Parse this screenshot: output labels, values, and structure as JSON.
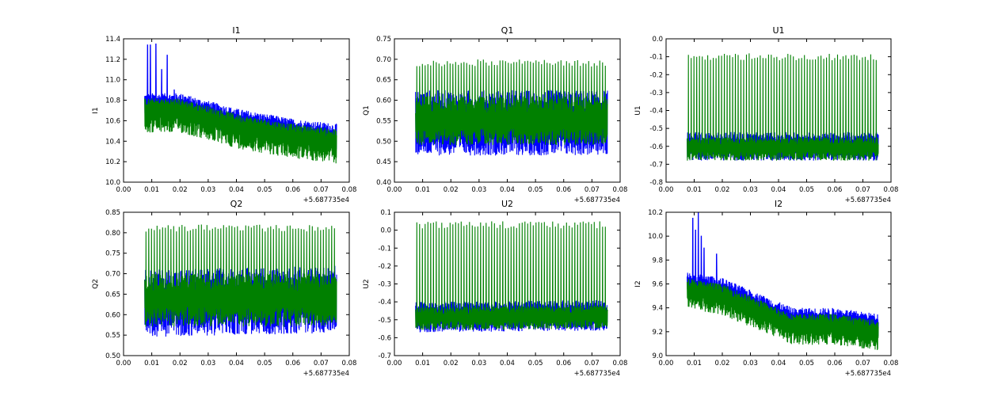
{
  "chart_data": [
    {
      "type": "line",
      "title": "I1",
      "ylabel": "I1",
      "xlabel": "",
      "x_offset_label": "+5.687735e4",
      "xlim": [
        0.0,
        0.08
      ],
      "ylim": [
        10.0,
        11.4
      ],
      "xticks": [
        "0.00",
        "0.01",
        "0.02",
        "0.03",
        "0.04",
        "0.05",
        "0.06",
        "0.07",
        "0.08"
      ],
      "yticks": [
        "10.0",
        "10.2",
        "10.4",
        "10.6",
        "10.8",
        "11.0",
        "11.2",
        "11.4"
      ],
      "x_range": [
        0.0075,
        0.0755
      ],
      "series": [
        {
          "name": "blue",
          "color": "#0000ff",
          "trend": [
            [
              0.0075,
              10.75
            ],
            [
              0.02,
              10.75
            ],
            [
              0.04,
              10.6
            ],
            [
              0.06,
              10.5
            ],
            [
              0.0755,
              10.45
            ]
          ],
          "band_lo": 0.15,
          "band_hi": 0.12,
          "spikes": [
            [
              0.0085,
              11.34
            ],
            [
              0.0095,
              11.34
            ],
            [
              0.0115,
              11.35
            ],
            [
              0.0135,
              11.1
            ],
            [
              0.0155,
              11.24
            ],
            [
              0.018,
              10.9
            ],
            [
              0.021,
              10.85
            ]
          ]
        },
        {
          "name": "green",
          "color": "#008000",
          "trend": [
            [
              0.0075,
              10.7
            ],
            [
              0.02,
              10.7
            ],
            [
              0.04,
              10.55
            ],
            [
              0.06,
              10.45
            ],
            [
              0.0755,
              10.4
            ]
          ],
          "band_lo": 0.22,
          "band_hi": 0.12,
          "spikes": []
        }
      ]
    },
    {
      "type": "line",
      "title": "Q1",
      "ylabel": "Q1",
      "xlabel": "",
      "x_offset_label": "+5.687735e4",
      "xlim": [
        0.0,
        0.08
      ],
      "ylim": [
        0.4,
        0.75
      ],
      "xticks": [
        "0.00",
        "0.01",
        "0.02",
        "0.03",
        "0.04",
        "0.05",
        "0.06",
        "0.07",
        "0.08"
      ],
      "yticks": [
        "0.40",
        "0.45",
        "0.50",
        "0.55",
        "0.60",
        "0.65",
        "0.70",
        "0.75"
      ],
      "x_range": [
        0.0075,
        0.0755
      ],
      "series": [
        {
          "name": "blue",
          "color": "#0000ff",
          "trend": [
            [
              0.0075,
              0.54
            ],
            [
              0.0755,
              0.54
            ]
          ],
          "band_lo": 0.075,
          "band_hi": 0.085,
          "spikes": []
        },
        {
          "name": "green",
          "color": "#008000",
          "trend": [
            [
              0.0075,
              0.55
            ],
            [
              0.0755,
              0.55
            ]
          ],
          "band_lo": 0.06,
          "band_hi": 0.06,
          "spikes": [],
          "periodic_peak": 0.7
        }
      ]
    },
    {
      "type": "line",
      "title": "U1",
      "ylabel": "U1",
      "xlabel": "",
      "x_offset_label": "+5.687735e4",
      "xlim": [
        0.0,
        0.08
      ],
      "ylim": [
        -0.8,
        0.0
      ],
      "xticks": [
        "0.00",
        "0.01",
        "0.02",
        "0.03",
        "0.04",
        "0.05",
        "0.06",
        "0.07",
        "0.08"
      ],
      "yticks": [
        "-0.8",
        "-0.7",
        "-0.6",
        "-0.5",
        "-0.4",
        "-0.3",
        "-0.2",
        "-0.1",
        "0.0"
      ],
      "x_range": [
        0.0075,
        0.0755
      ],
      "series": [
        {
          "name": "blue",
          "color": "#0000ff",
          "trend": [
            [
              0.0075,
              -0.6
            ],
            [
              0.0755,
              -0.6
            ]
          ],
          "band_lo": 0.08,
          "band_hi": 0.08,
          "spikes": []
        },
        {
          "name": "green",
          "color": "#008000",
          "trend": [
            [
              0.0075,
              -0.61
            ],
            [
              0.0755,
              -0.61
            ]
          ],
          "band_lo": 0.07,
          "band_hi": 0.06,
          "spikes": [],
          "periodic_peak": -0.08
        }
      ]
    },
    {
      "type": "line",
      "title": "Q2",
      "ylabel": "Q2",
      "xlabel": "",
      "x_offset_label": "+5.687735e4",
      "xlim": [
        0.0,
        0.08
      ],
      "ylim": [
        0.5,
        0.85
      ],
      "xticks": [
        "0.00",
        "0.01",
        "0.02",
        "0.03",
        "0.04",
        "0.05",
        "0.06",
        "0.07",
        "0.08"
      ],
      "yticks": [
        "0.50",
        "0.55",
        "0.60",
        "0.65",
        "0.70",
        "0.75",
        "0.80",
        "0.85"
      ],
      "x_range": [
        0.0075,
        0.0755
      ],
      "series": [
        {
          "name": "blue",
          "color": "#0000ff",
          "trend": [
            [
              0.0075,
              0.63
            ],
            [
              0.0755,
              0.64
            ]
          ],
          "band_lo": 0.085,
          "band_hi": 0.08,
          "spikes": []
        },
        {
          "name": "green",
          "color": "#008000",
          "trend": [
            [
              0.0075,
              0.64
            ],
            [
              0.0755,
              0.64
            ]
          ],
          "band_lo": 0.07,
          "band_hi": 0.06,
          "spikes": [],
          "periodic_peak": 0.82
        }
      ]
    },
    {
      "type": "line",
      "title": "U2",
      "ylabel": "U2",
      "xlabel": "",
      "x_offset_label": "+5.687735e4",
      "xlim": [
        0.0,
        0.08
      ],
      "ylim": [
        -0.7,
        0.1
      ],
      "xticks": [
        "0.00",
        "0.01",
        "0.02",
        "0.03",
        "0.04",
        "0.05",
        "0.06",
        "0.07",
        "0.08"
      ],
      "yticks": [
        "-0.7",
        "-0.6",
        "-0.5",
        "-0.4",
        "-0.3",
        "-0.2",
        "-0.1",
        "0.0",
        "0.1"
      ],
      "x_range": [
        0.0075,
        0.0755
      ],
      "series": [
        {
          "name": "blue",
          "color": "#0000ff",
          "trend": [
            [
              0.0075,
              -0.48
            ],
            [
              0.0755,
              -0.47
            ]
          ],
          "band_lo": 0.09,
          "band_hi": 0.08,
          "spikes": []
        },
        {
          "name": "green",
          "color": "#008000",
          "trend": [
            [
              0.0075,
              -0.49
            ],
            [
              0.0755,
              -0.48
            ]
          ],
          "band_lo": 0.07,
          "band_hi": 0.06,
          "spikes": [],
          "periodic_peak": 0.05
        }
      ]
    },
    {
      "type": "line",
      "title": "I2",
      "ylabel": "I2",
      "xlabel": "",
      "x_offset_label": "+5.687735e4",
      "xlim": [
        0.0,
        0.08
      ],
      "ylim": [
        9.0,
        10.2
      ],
      "xticks": [
        "0.00",
        "0.01",
        "0.02",
        "0.03",
        "0.04",
        "0.05",
        "0.06",
        "0.07",
        "0.08"
      ],
      "yticks": [
        "9.0",
        "9.2",
        "9.4",
        "9.6",
        "9.8",
        "10.0",
        "10.2"
      ],
      "x_range": [
        0.0075,
        0.0755
      ],
      "series": [
        {
          "name": "blue",
          "color": "#0000ff",
          "trend": [
            [
              0.0075,
              9.6
            ],
            [
              0.02,
              9.55
            ],
            [
              0.035,
              9.4
            ],
            [
              0.045,
              9.3
            ],
            [
              0.06,
              9.3
            ],
            [
              0.0755,
              9.25
            ]
          ],
          "band_lo": 0.1,
          "band_hi": 0.1,
          "spikes": [
            [
              0.0095,
              10.15
            ],
            [
              0.0105,
              10.05
            ],
            [
              0.0115,
              10.2
            ],
            [
              0.0125,
              10.0
            ],
            [
              0.0135,
              9.9
            ],
            [
              0.018,
              9.85
            ]
          ]
        },
        {
          "name": "green",
          "color": "#008000",
          "trend": [
            [
              0.0075,
              9.55
            ],
            [
              0.02,
              9.5
            ],
            [
              0.035,
              9.35
            ],
            [
              0.045,
              9.25
            ],
            [
              0.06,
              9.25
            ],
            [
              0.0755,
              9.2
            ]
          ],
          "band_lo": 0.16,
          "band_hi": 0.1,
          "spikes": []
        }
      ]
    }
  ]
}
